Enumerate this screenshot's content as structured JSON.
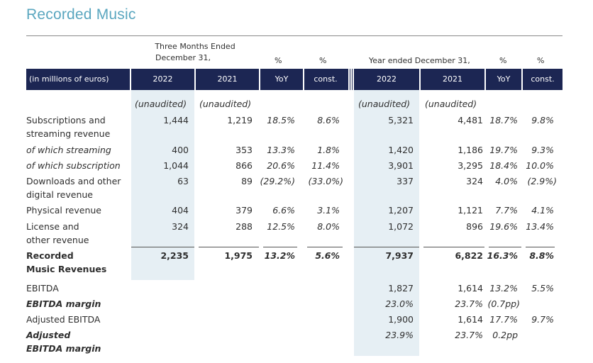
{
  "title": "Recorded Music",
  "header": {
    "three_months_line1": "Three Months Ended",
    "three_months_line2": "December 31,",
    "pct": "%",
    "year_ended": "Year ended December 31,",
    "unit": "(in millions of euros)",
    "cols": [
      "2022",
      "2021",
      "YoY",
      "const.",
      "2022",
      "2021",
      "YoY",
      "const."
    ]
  },
  "unaudited": "(unaudited)",
  "rows": [
    {
      "label": [
        "Subscriptions and",
        "streaming revenue"
      ],
      "values": [
        "1,444",
        "1,219",
        "18.5%",
        "8.6%",
        "5,321",
        "4,481",
        "18.7%",
        "9.8%"
      ]
    },
    {
      "label": [
        "of which streaming"
      ],
      "values": [
        "400",
        "353",
        "13.3%",
        "1.8%",
        "1,420",
        "1,186",
        "19.7%",
        "9.3%"
      ]
    },
    {
      "label": [
        "of which subscription"
      ],
      "values": [
        "1,044",
        "866",
        "20.6%",
        "11.4%",
        "3,901",
        "3,295",
        "18.4%",
        "10.0%"
      ]
    },
    {
      "label": [
        "Downloads and other",
        "digital revenue"
      ],
      "values": [
        "63",
        "89",
        "(29.2%)",
        "(33.0%)",
        "337",
        "324",
        "4.0%",
        "(2.9%)"
      ]
    },
    {
      "label": [
        "Physical revenue"
      ],
      "values": [
        "404",
        "379",
        "6.6%",
        "3.1%",
        "1,207",
        "1,121",
        "7.7%",
        "4.1%"
      ]
    },
    {
      "label": [
        "License and",
        "other revenue"
      ],
      "values": [
        "324",
        "288",
        "12.5%",
        "8.0%",
        "1,072",
        "896",
        "19.6%",
        "13.4%"
      ]
    },
    {
      "label": [
        "Recorded",
        "Music Revenues"
      ],
      "values": [
        "2,235",
        "1,975",
        "13.2%",
        "5.6%",
        "7,937",
        "6,822",
        "16.3%",
        "8.8%"
      ]
    },
    {
      "label": [
        "EBITDA"
      ],
      "values": [
        "",
        "",
        "",
        "",
        "1,827",
        "1,614",
        "13.2%",
        "5.5%"
      ]
    },
    {
      "label": [
        "EBITDA margin"
      ],
      "values": [
        "",
        "",
        "",
        "",
        "23.0%",
        "23.7%",
        "(0.7pp)",
        ""
      ]
    },
    {
      "label": [
        "Adjusted EBITDA"
      ],
      "values": [
        "",
        "",
        "",
        "",
        "1,900",
        "1,614",
        "17.7%",
        "9.7%"
      ]
    },
    {
      "label": [
        "Adjusted",
        "EBITDA margin"
      ],
      "values": [
        "",
        "",
        "",
        "",
        "23.9%",
        "23.7%",
        "0.2pp",
        ""
      ]
    }
  ]
}
